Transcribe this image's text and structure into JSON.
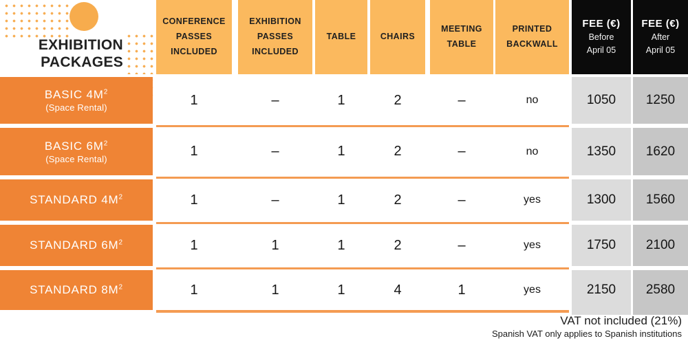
{
  "title": {
    "line1": "EXHIBITION",
    "line2": "PACKAGES"
  },
  "table": {
    "feature_columns": [
      "CONFERENCE PASSES INCLUDED",
      "EXHIBITION PASSES INCLUDED",
      "TABLE",
      "CHAIRS",
      "MEETING TABLE",
      "PRINTED BACKWALL"
    ],
    "fee_columns": [
      {
        "title": "FEE (€)",
        "sub": "Before\nApril 05"
      },
      {
        "title": "FEE (€)",
        "sub": "After\nApril 05"
      }
    ],
    "rows": [
      {
        "name": "BASIC 4M",
        "sup": "2",
        "subname": "(Space Rental)",
        "values": [
          "1",
          "–",
          "1",
          "2",
          "–",
          "no"
        ],
        "fee_before": "1050",
        "fee_after": "1250"
      },
      {
        "name": "BASIC 6M",
        "sup": "2",
        "subname": "(Space Rental)",
        "values": [
          "1",
          "–",
          "1",
          "2",
          "–",
          "no"
        ],
        "fee_before": "1350",
        "fee_after": "1620"
      },
      {
        "name": "STANDARD 4M",
        "sup": "2",
        "subname": "",
        "values": [
          "1",
          "–",
          "1",
          "2",
          "–",
          "yes"
        ],
        "fee_before": "1300",
        "fee_after": "1560"
      },
      {
        "name": "STANDARD 6M",
        "sup": "2",
        "subname": "",
        "values": [
          "1",
          "1",
          "1",
          "2",
          "–",
          "yes"
        ],
        "fee_before": "1750",
        "fee_after": "2100"
      },
      {
        "name": "STANDARD 8M",
        "sup": "2",
        "subname": "",
        "values": [
          "1",
          "1",
          "1",
          "4",
          "1",
          "yes"
        ],
        "fee_before": "2150",
        "fee_after": "2580"
      }
    ]
  },
  "footer": {
    "line1": "VAT not included (21%)",
    "line2": "Spanish VAT only applies to Spanish institutions"
  },
  "colors": {
    "header_orange": "#FBB95E",
    "row_orange": "#EF8435",
    "line_orange": "#F49B52",
    "fee1_gray": "#DCDCDC",
    "fee2_gray": "#C6C6C6",
    "fee_black": "#0B0B0B",
    "dot_orange": "#F7AE54",
    "dot_light": "#F8CA92",
    "circle_orange": "#F7AC4D"
  },
  "chart_data": {
    "type": "table",
    "title": "EXHIBITION PACKAGES",
    "columns": [
      "EXHIBITION PACKAGES",
      "CONFERENCE PASSES INCLUDED",
      "EXHIBITION PASSES INCLUDED",
      "TABLE",
      "CHAIRS",
      "MEETING TABLE",
      "PRINTED BACKWALL",
      "FEE (€) Before April 05",
      "FEE (€) After April 05"
    ],
    "rows": [
      [
        "BASIC 4M² (Space Rental)",
        "1",
        "–",
        "1",
        "2",
        "–",
        "no",
        "1050",
        "1250"
      ],
      [
        "BASIC 6M² (Space Rental)",
        "1",
        "–",
        "1",
        "2",
        "–",
        "no",
        "1350",
        "1620"
      ],
      [
        "STANDARD 4M²",
        "1",
        "–",
        "1",
        "2",
        "–",
        "yes",
        "1300",
        "1560"
      ],
      [
        "STANDARD 6M²",
        "1",
        "1",
        "1",
        "2",
        "–",
        "yes",
        "1750",
        "2100"
      ],
      [
        "STANDARD 8M²",
        "1",
        "1",
        "1",
        "4",
        "1",
        "yes",
        "2150",
        "2580"
      ]
    ],
    "footnotes": [
      "VAT not included (21%)",
      "Spanish VAT only applies to Spanish institutions"
    ]
  }
}
